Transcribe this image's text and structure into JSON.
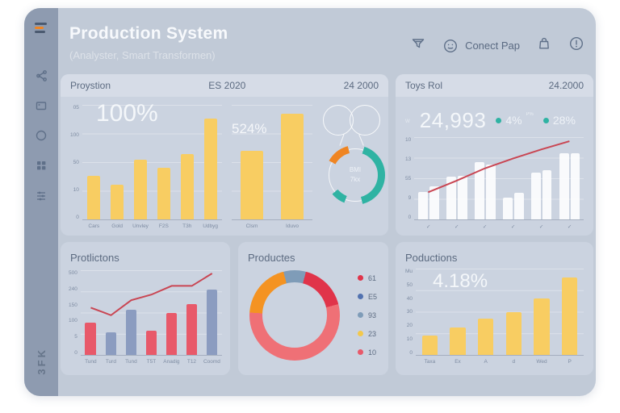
{
  "window": {
    "title": "Production System",
    "subtitle": "(Analyster, Smart Transformen)"
  },
  "header": {
    "connect_label": "Conect Pap"
  },
  "sidebar": {
    "vertical_label": "3FK"
  },
  "colors": {
    "accent_yellow": "#f8cd62",
    "accent_red": "#e8596a",
    "accent_blue": "#8b9cc0",
    "accent_teal": "#2fb3a3",
    "accent_orange": "#ef8523",
    "line_red": "#c94653"
  },
  "panels": {
    "production": {
      "title": "Proystion",
      "period": "ES 2020",
      "range": "24 2000",
      "kpi": "100%",
      "kpi_mid": "524%",
      "left_chart": {
        "type": "bar",
        "max": 100,
        "yticks": [
          "05",
          "100",
          "50",
          "10",
          "0"
        ],
        "categories": [
          "Cars",
          "Gold",
          "Unvley",
          "F2S",
          "T3h",
          "Udbyg"
        ],
        "values": [
          38,
          30,
          52,
          45,
          57,
          88
        ],
        "color": "#f8cd62"
      },
      "mid_chart": {
        "type": "bar",
        "max": 100,
        "categories": [
          "Clsm",
          "Iduvo"
        ],
        "values": [
          60,
          92
        ],
        "color": "#f8cd62"
      },
      "gauge": {
        "center_line1": "BMI",
        "center_line2": "7kx",
        "segments": [
          {
            "color": "#2fb3a3",
            "from": 5,
            "to": 46
          },
          {
            "color": "#2fb3a3",
            "from": 56,
            "to": 64
          },
          {
            "color": "#ef8523",
            "from": 83,
            "to": 96
          }
        ]
      }
    },
    "toys_rol": {
      "title": "Toys Rol",
      "range": "24.2000",
      "kpi_prefix": "w",
      "kpi": "24,993",
      "stat1": "4%",
      "stat1_sup": "P%",
      "stat2": "28%",
      "chart": {
        "type": "bar+line",
        "max": 100,
        "yticks": [
          "10",
          "13",
          "55",
          "9",
          "0"
        ],
        "categories": [
          "✓",
          "✓",
          "✓",
          "✓",
          "✓",
          "✓"
        ],
        "series": [
          [
            33,
            40
          ],
          [
            52,
            53
          ],
          [
            70,
            67
          ],
          [
            26,
            32
          ],
          [
            57,
            60
          ],
          [
            80,
            80
          ]
        ],
        "line": [
          33,
          47,
          62,
          74,
          85,
          95
        ],
        "color": "rgba(255,255,255,0.88)",
        "line_color": "#c94653"
      }
    },
    "productions": {
      "title": "Protlictons",
      "chart": {
        "type": "bar+line",
        "max": 260,
        "yticks": [
          "500",
          "240",
          "150",
          "100",
          "5",
          "0"
        ],
        "categories": [
          "Tund",
          "Turd",
          "Tund",
          "T5T",
          "Anadig",
          "T12",
          "Coomd"
        ],
        "values": [
          100,
          70,
          140,
          75,
          130,
          155,
          200
        ],
        "colors": [
          "#e8596a",
          "#8b9cc0",
          "#8b9cc0",
          "#e8596a",
          "#e8596a",
          "#e8596a",
          "#8b9cc0"
        ],
        "line": [
          145,
          122,
          168,
          185,
          212,
          212,
          250
        ],
        "line_color": "#c94653"
      }
    },
    "productes": {
      "title": "Productes",
      "donut": {
        "type": "pie",
        "segments": [
          {
            "color": "#7f9cb8",
            "pct": 4
          },
          {
            "color": "#e0344a",
            "pct": 17
          },
          {
            "color": "#ef7076",
            "pct": 55
          },
          {
            "color": "#f49322",
            "pct": 20
          },
          {
            "color": "#7f9cb8",
            "pct": 4
          }
        ]
      },
      "legend": [
        {
          "color": "#e0344a",
          "label": "61"
        },
        {
          "color": "#5272b0",
          "label": "E5"
        },
        {
          "color": "#7f9cb8",
          "label": "93"
        },
        {
          "color": "#f3c84b",
          "label": "23"
        },
        {
          "color": "#e8596a",
          "label": "10"
        }
      ]
    },
    "poductions": {
      "title": "Poductions",
      "kpi": "4.18%",
      "chart": {
        "type": "bar",
        "max": 100,
        "yticks": [
          "Mu",
          "50",
          "40",
          "30",
          "20",
          "10",
          "0"
        ],
        "categories": [
          "Taxa",
          "Ex",
          "A",
          "d",
          "Wed",
          "P"
        ],
        "values": [
          22,
          32,
          42,
          50,
          65,
          90
        ],
        "color": "#f8cd62"
      }
    }
  }
}
